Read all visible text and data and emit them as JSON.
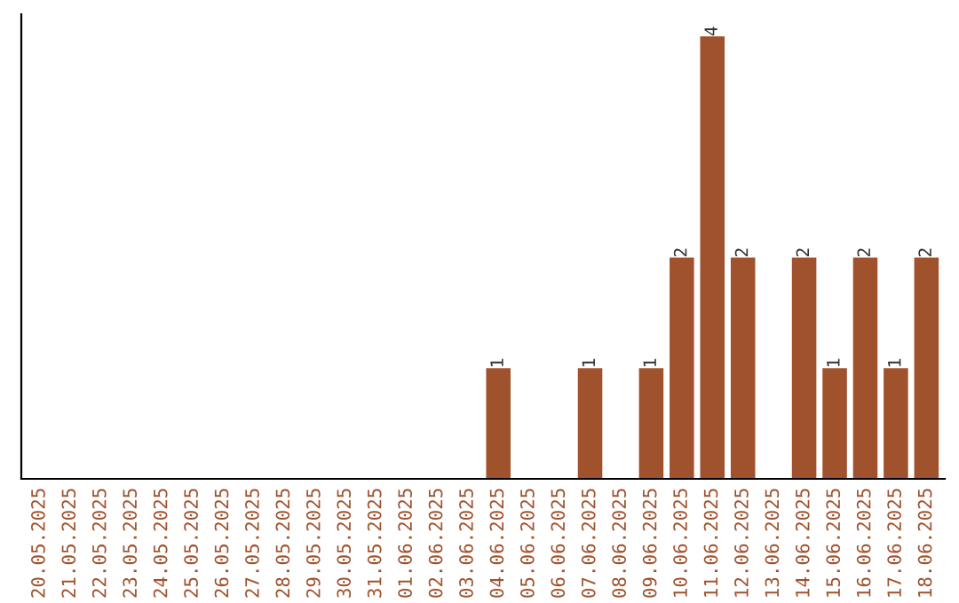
{
  "chart_data": {
    "type": "bar",
    "categories": [
      "20.05.2025",
      "21.05.2025",
      "22.05.2025",
      "23.05.2025",
      "24.05.2025",
      "25.05.2025",
      "26.05.2025",
      "27.05.2025",
      "28.05.2025",
      "29.05.2025",
      "30.05.2025",
      "31.05.2025",
      "01.06.2025",
      "02.06.2025",
      "03.06.2025",
      "04.06.2025",
      "05.06.2025",
      "06.06.2025",
      "07.06.2025",
      "08.06.2025",
      "09.06.2025",
      "10.06.2025",
      "11.06.2025",
      "12.06.2025",
      "13.06.2025",
      "14.06.2025",
      "15.06.2025",
      "16.06.2025",
      "17.06.2025",
      "18.06.2025"
    ],
    "values": [
      null,
      null,
      null,
      null,
      null,
      null,
      null,
      null,
      null,
      null,
      null,
      null,
      null,
      null,
      null,
      1,
      null,
      null,
      1,
      null,
      1,
      2,
      4,
      2,
      null,
      2,
      1,
      2,
      1,
      2
    ],
    "value_labels": [
      null,
      null,
      null,
      null,
      null,
      null,
      null,
      null,
      null,
      null,
      null,
      null,
      null,
      null,
      null,
      "1",
      null,
      null,
      "1",
      null,
      "1",
      "2",
      "4",
      "2",
      null,
      "2",
      "1",
      "2",
      "1",
      "2"
    ],
    "color": "#a0522d",
    "tick_labels": "x",
    "grid": false,
    "legend": false
  }
}
